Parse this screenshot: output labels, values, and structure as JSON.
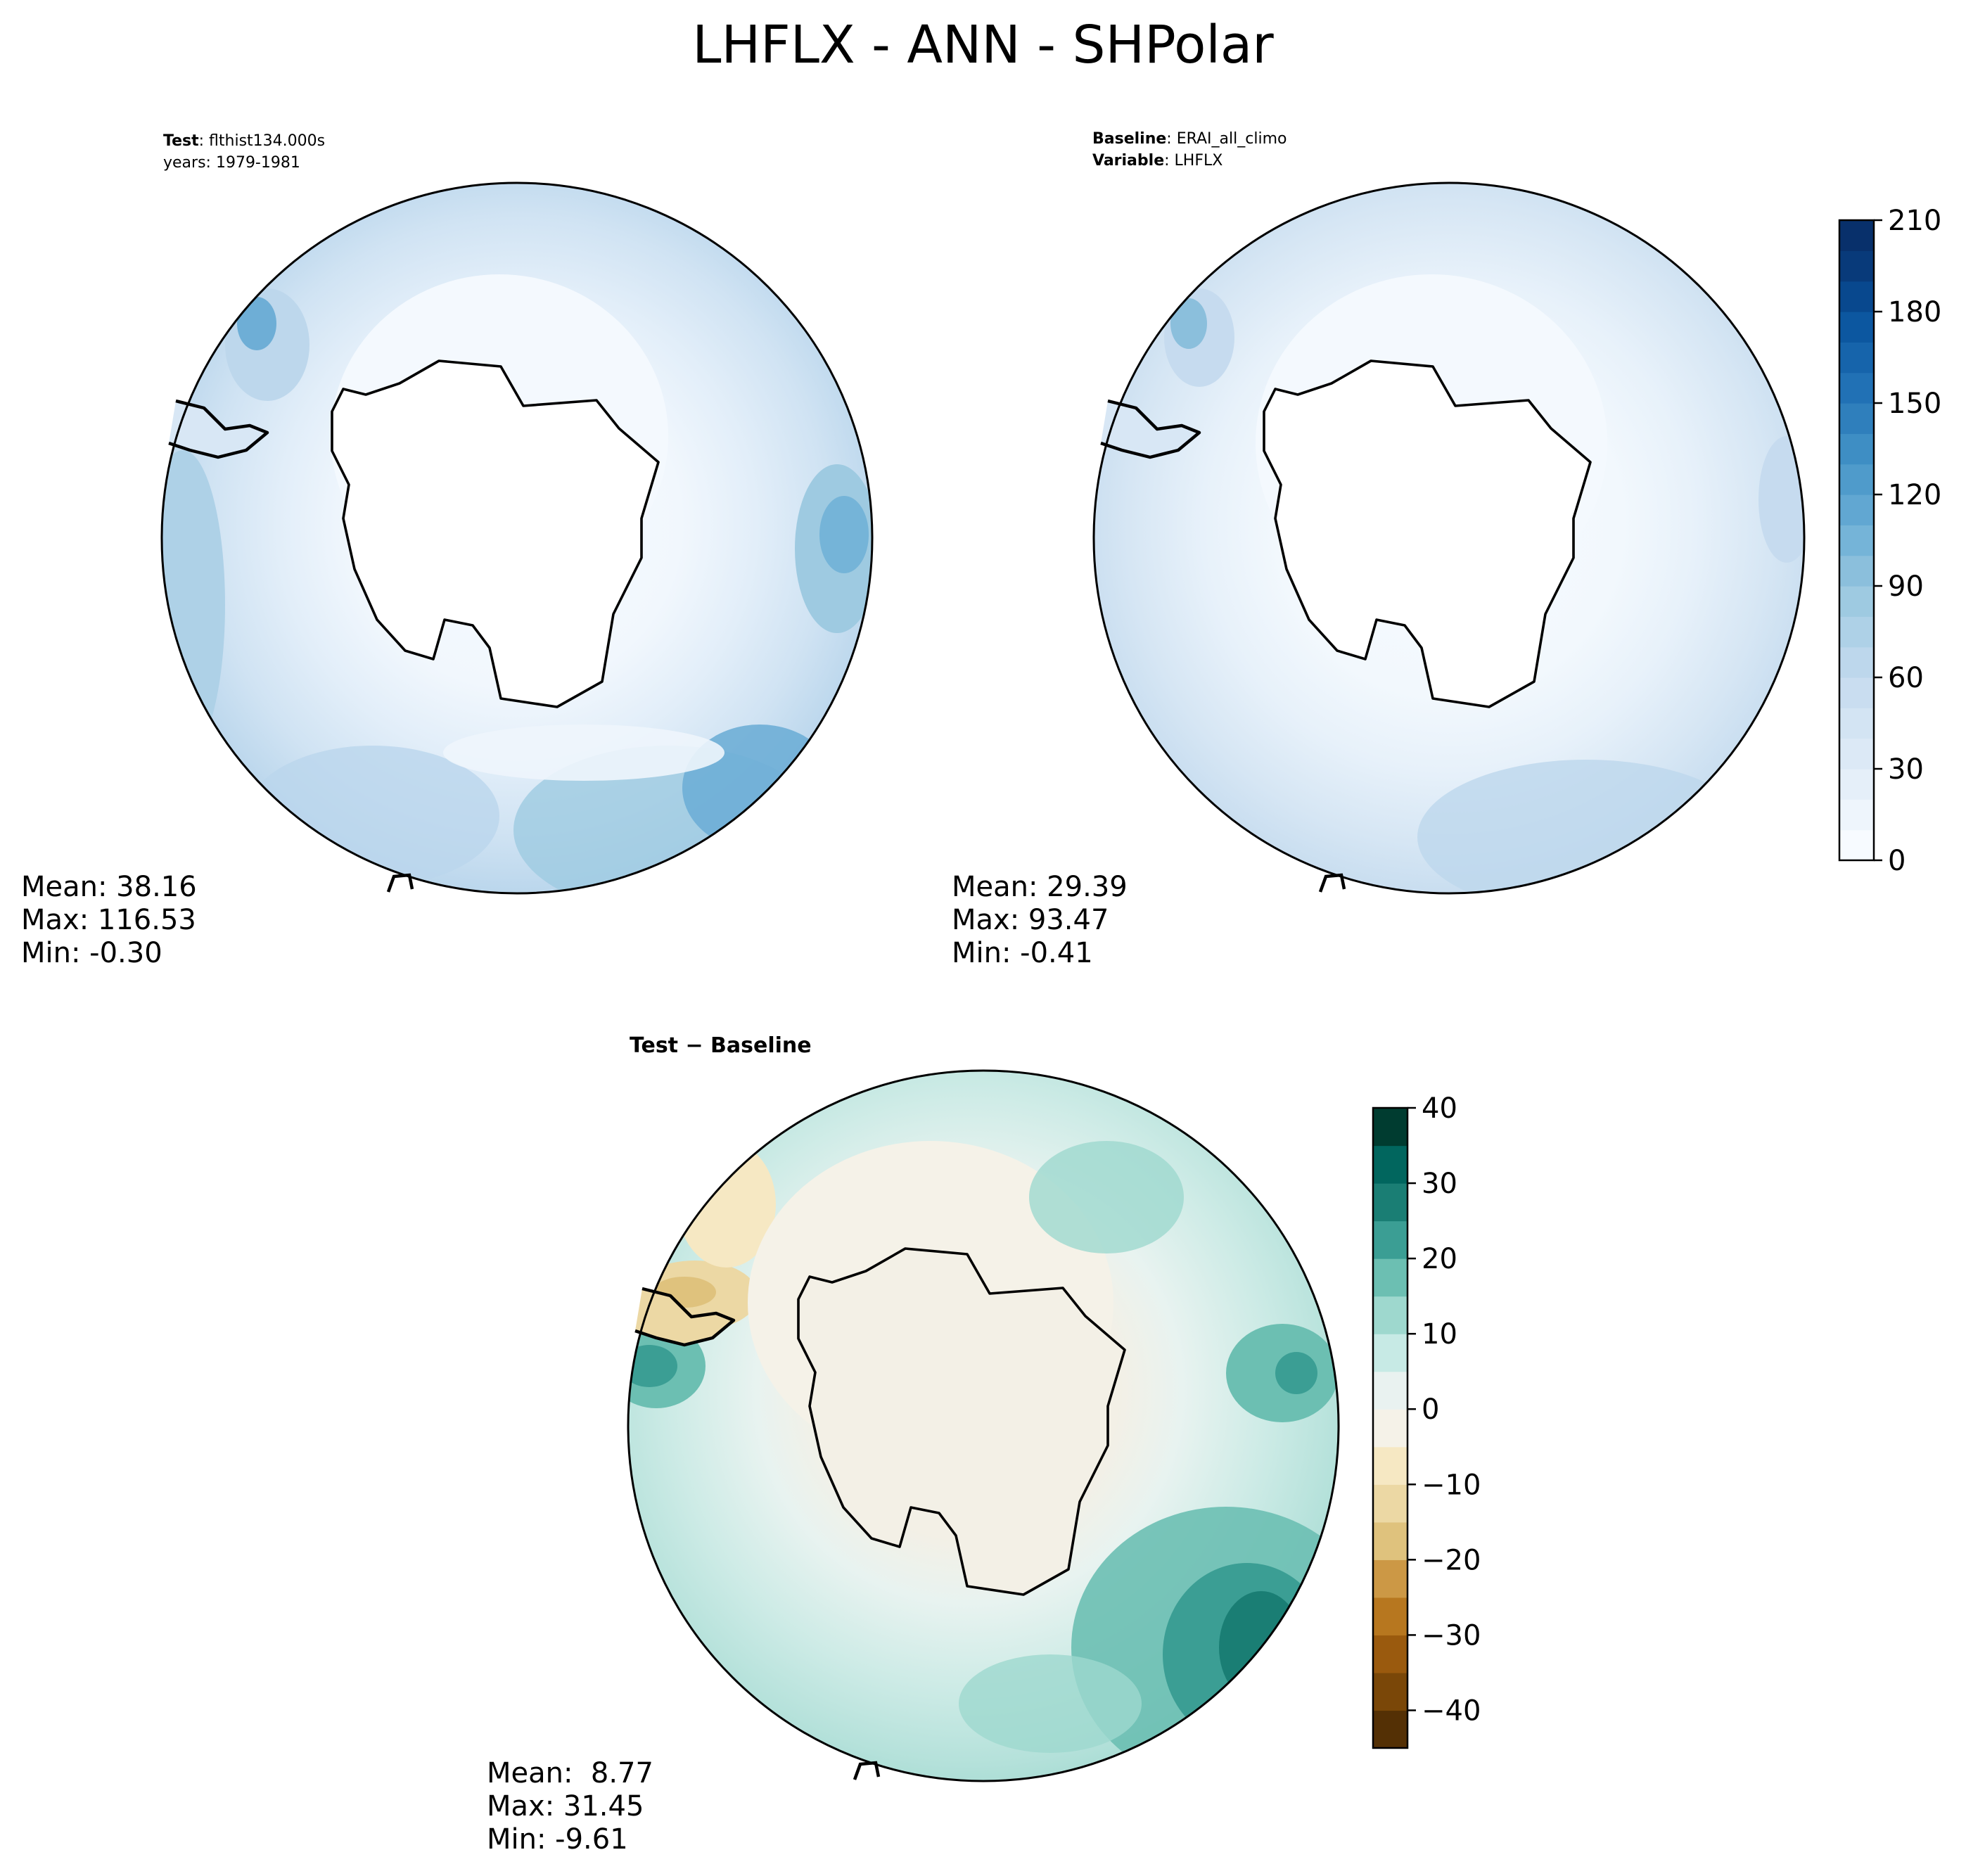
{
  "figure": {
    "title": "LHFLX - ANN - SHPolar"
  },
  "panels": {
    "test": {
      "label": "Test",
      "name": "flthist134.000s",
      "years": "years: 1979-1981",
      "stats": {
        "mean": "Mean: 38.16",
        "max": "Max: 116.53",
        "min": "Min: -0.30"
      },
      "colormap": "Blues"
    },
    "baseline": {
      "label": "Baseline",
      "name": "ERAI_all_climo",
      "variable_label": "Variable",
      "variable": "LHFLX",
      "stats": {
        "mean": "Mean: 29.39",
        "max": "Max: 93.47",
        "min": "Min: -0.41"
      },
      "colormap": "Blues"
    },
    "difference": {
      "title": "Test − Baseline",
      "stats": {
        "mean": "Mean:  8.77",
        "max": "Max: 31.45",
        "min": "Min: -9.61"
      },
      "colormap": "BrBG"
    }
  },
  "colorbars": {
    "main": {
      "ticks": [
        "0",
        "30",
        "60",
        "90",
        "120",
        "150",
        "180",
        "210"
      ],
      "tick_values": [
        0,
        30,
        60,
        90,
        120,
        150,
        180,
        210
      ],
      "range": [
        0,
        210
      ],
      "colors": [
        "#f7fbff",
        "#eef5fc",
        "#e5eff9",
        "#dce9f6",
        "#d3e4f3",
        "#c9ddf0",
        "#bdd7ec",
        "#aed1e7",
        "#9ecae1",
        "#8bbfdc",
        "#75b4d8",
        "#61a7d2",
        "#4f9bcb",
        "#3e8ec4",
        "#2f7fbc",
        "#2171b5",
        "#1664ab",
        "#0c57a0",
        "#08488e",
        "#083a7a",
        "#08306b"
      ]
    },
    "diff": {
      "ticks": [
        "−40",
        "−30",
        "−20",
        "−10",
        "0",
        "10",
        "20",
        "30",
        "40"
      ],
      "tick_values": [
        -40,
        -30,
        -20,
        -10,
        0,
        10,
        20,
        30,
        40
      ],
      "range": [
        -45,
        40
      ],
      "colors": [
        "#543005",
        "#7a4708",
        "#9a5a0e",
        "#b7771f",
        "#cc9845",
        "#dfc27d",
        "#ecd8a4",
        "#f6e8c3",
        "#f5f2e8",
        "#e9f2f0",
        "#c7eae5",
        "#9ed8ce",
        "#6cbfb2",
        "#3b9e94",
        "#1a7e74",
        "#01665e",
        "#003c30"
      ]
    }
  },
  "legend_placement": "right of each row"
}
